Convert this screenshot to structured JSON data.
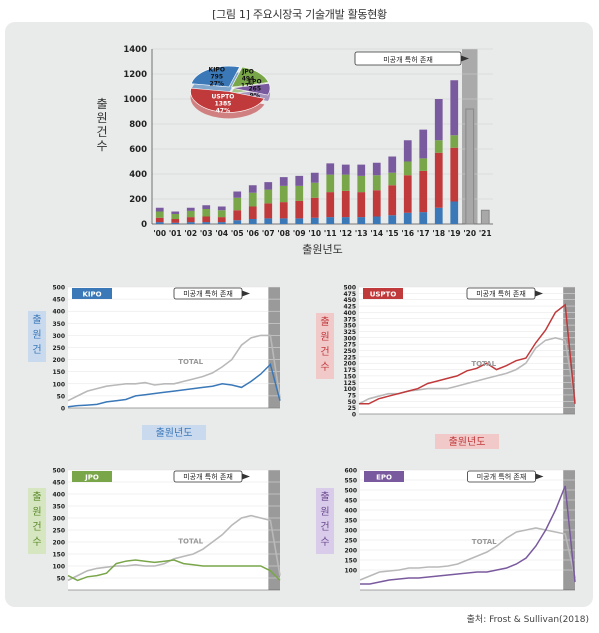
{
  "figure": {
    "title": "[그림 1] 주요시장국 기술개발 활동현황",
    "source": "출처: Frost & Sullivan(2018)"
  },
  "colors": {
    "kipo": "#3a78b8",
    "usspto": "#c0393b",
    "jpo": "#7aa64a",
    "epo": "#7a5a9e",
    "total": "#b9b9b9",
    "unpublished_band": "#9a9a9a"
  },
  "chart_data": [
    {
      "id": "main",
      "type": "bar",
      "stacked": true,
      "categories": [
        "'00",
        "'01",
        "'02",
        "'03",
        "'04",
        "'05",
        "'06",
        "'07",
        "'08",
        "'09",
        "'10",
        "'11",
        "'12",
        "'13",
        "'14",
        "'15",
        "'16",
        "'17",
        "'18",
        "'19",
        "'20",
        "'21"
      ],
      "ylabel": "출원건수",
      "xlabel": "출원년도",
      "ylim": [
        0,
        1400
      ],
      "yticks": [
        0,
        200,
        400,
        600,
        800,
        1000,
        1200,
        1400
      ],
      "note": "미공개 특허 존재",
      "series": [
        {
          "name": "KIPO",
          "color": "#3a78b8",
          "values": [
            15,
            10,
            15,
            15,
            15,
            30,
            40,
            45,
            45,
            45,
            50,
            55,
            55,
            55,
            60,
            70,
            90,
            95,
            130,
            180,
            0,
            0
          ]
        },
        {
          "name": "USPTO",
          "color": "#c0393b",
          "values": [
            35,
            30,
            40,
            45,
            40,
            80,
            100,
            120,
            130,
            140,
            160,
            200,
            210,
            200,
            210,
            240,
            300,
            330,
            440,
            430,
            0,
            0
          ]
        },
        {
          "name": "JPO",
          "color": "#7aa64a",
          "values": [
            50,
            40,
            50,
            60,
            55,
            100,
            110,
            110,
            130,
            120,
            120,
            140,
            130,
            130,
            120,
            100,
            110,
            100,
            100,
            100,
            0,
            0
          ]
        },
        {
          "name": "EPO",
          "color": "#7a5a9e",
          "values": [
            30,
            20,
            25,
            30,
            30,
            50,
            60,
            60,
            70,
            80,
            80,
            90,
            80,
            90,
            100,
            130,
            170,
            230,
            330,
            440,
            0,
            0
          ]
        }
      ],
      "total_only": [
        0,
        0,
        0,
        0,
        0,
        0,
        0,
        0,
        0,
        0,
        0,
        0,
        0,
        0,
        0,
        0,
        0,
        0,
        0,
        0,
        920,
        110
      ],
      "pie": {
        "type": "pie",
        "slices": [
          {
            "label": "KIPO",
            "value": 795,
            "pct": "27%",
            "color": "#3a78b8"
          },
          {
            "label": "JPO",
            "value": 494,
            "pct": "17%",
            "color": "#7aa64a"
          },
          {
            "label": "EPO",
            "value": 265,
            "pct": "9%",
            "color": "#7a5a9e"
          },
          {
            "label": "USPTO",
            "value": 1385,
            "pct": "47%",
            "color": "#c0393b"
          }
        ]
      }
    },
    {
      "id": "kipo",
      "type": "line",
      "label": "KIPO",
      "ylim": [
        0,
        500
      ],
      "yticks": [
        0,
        50,
        100,
        150,
        200,
        250,
        300,
        350,
        400,
        450,
        500
      ],
      "ylabel": "출원건",
      "xlabel": "출원년도",
      "note": "미공개 특허 존재",
      "total_label": "TOTAL",
      "series": [
        {
          "name": "KIPO",
          "color": "#3a78b8",
          "values": [
            5,
            10,
            12,
            15,
            25,
            30,
            35,
            50,
            55,
            60,
            65,
            70,
            75,
            80,
            85,
            90,
            100,
            95,
            85,
            110,
            140,
            180,
            30
          ]
        },
        {
          "name": "TOTAL",
          "color": "#b9b9b9",
          "values": [
            30,
            50,
            70,
            80,
            90,
            95,
            100,
            100,
            105,
            95,
            100,
            100,
            110,
            120,
            130,
            145,
            170,
            200,
            260,
            290,
            300,
            300,
            40
          ]
        }
      ]
    },
    {
      "id": "uspto",
      "type": "line",
      "label": "USPTO",
      "ylim": [
        0,
        500
      ],
      "yticks": [
        0,
        25,
        50,
        75,
        100,
        125,
        150,
        175,
        200,
        225,
        250,
        275,
        300,
        325,
        350,
        375,
        400,
        425,
        450,
        475,
        500
      ],
      "ylabel": "출원건수",
      "xlabel": "출원년도",
      "note": "미공개 특허 존재",
      "total_label": "TOTAL",
      "series": [
        {
          "name": "USPTO",
          "color": "#c0393b",
          "values": [
            40,
            40,
            60,
            70,
            80,
            90,
            100,
            120,
            130,
            140,
            150,
            170,
            180,
            200,
            175,
            190,
            210,
            220,
            280,
            330,
            400,
            430,
            40
          ]
        },
        {
          "name": "TOTAL",
          "color": "#b9b9b9",
          "values": [
            40,
            60,
            70,
            80,
            80,
            90,
            95,
            100,
            100,
            100,
            110,
            120,
            130,
            140,
            150,
            160,
            175,
            200,
            260,
            290,
            300,
            290,
            50
          ]
        }
      ]
    },
    {
      "id": "jpo",
      "type": "line",
      "label": "JPO",
      "ylim": [
        0,
        500
      ],
      "yticks": [
        50,
        100,
        150,
        200,
        250,
        300,
        350,
        400,
        450,
        500
      ],
      "ylabel": "출원건수",
      "note": "미공개 특허 존재",
      "total_label": "TOTAL",
      "series": [
        {
          "name": "JPO",
          "color": "#7aa64a",
          "values": [
            60,
            40,
            55,
            60,
            70,
            110,
            120,
            125,
            120,
            115,
            120,
            125,
            110,
            105,
            100,
            100,
            100,
            100,
            100,
            100,
            100,
            80,
            40
          ]
        },
        {
          "name": "TOTAL",
          "color": "#b9b9b9",
          "values": [
            40,
            60,
            80,
            90,
            95,
            100,
            100,
            105,
            100,
            100,
            110,
            130,
            140,
            150,
            170,
            200,
            230,
            270,
            300,
            310,
            300,
            290,
            60
          ]
        }
      ]
    },
    {
      "id": "epo",
      "type": "line",
      "label": "EPO",
      "ylim": [
        0,
        600
      ],
      "yticks": [
        100,
        150,
        200,
        250,
        300,
        350,
        400,
        450,
        500,
        550,
        600
      ],
      "ylabel": "출원건수",
      "note": "미공개 특허 존재",
      "total_label": "TOTAL",
      "series": [
        {
          "name": "EPO",
          "color": "#7a5a9e",
          "values": [
            30,
            30,
            40,
            50,
            55,
            60,
            60,
            65,
            70,
            75,
            80,
            85,
            90,
            90,
            100,
            110,
            130,
            160,
            220,
            300,
            400,
            520,
            40
          ]
        },
        {
          "name": "TOTAL",
          "color": "#b9b9b9",
          "values": [
            50,
            70,
            90,
            95,
            100,
            110,
            110,
            115,
            115,
            120,
            130,
            150,
            170,
            190,
            220,
            260,
            290,
            300,
            310,
            300,
            290,
            280,
            60
          ]
        }
      ]
    }
  ]
}
